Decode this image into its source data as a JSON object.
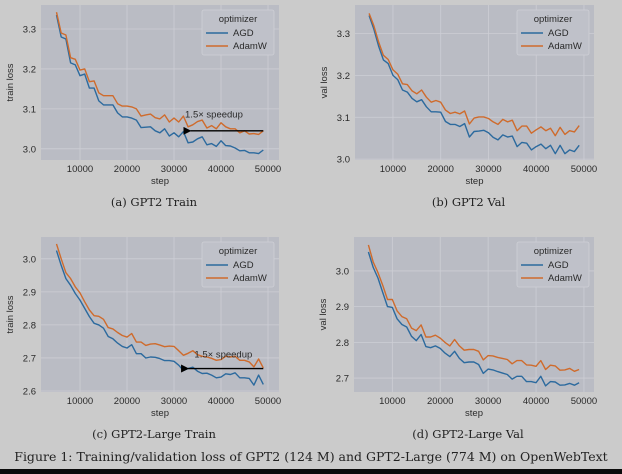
{
  "figure_caption": "Figure 1: Training/validation loss of GPT2 (124 M) and GPT2-Large (774 M) on OpenWebText",
  "colors": {
    "AGD": "#2c6a9e",
    "AdamW": "#cf6b2c",
    "plot_bg": "#babcc4",
    "grid": "#cdced5"
  },
  "chart_data": [
    {
      "type": "line",
      "caption": "(a) GPT2 Train",
      "xlabel": "step",
      "ylabel": "train loss",
      "xlim": [
        1700,
        52340
      ],
      "ylim": [
        2.972,
        3.36
      ],
      "xticks": [
        10000,
        20000,
        30000,
        40000,
        50000
      ],
      "xtick_labels": [
        "10000",
        "20000",
        "30000",
        "40000",
        "50000"
      ],
      "yticks": [
        3.0,
        3.1,
        3.2,
        3.3
      ],
      "ytick_labels": [
        "3.0",
        "3.1",
        "3.2",
        "3.3"
      ],
      "grid": true,
      "legend": {
        "title": "optimizer",
        "placement": "top-right",
        "entries": [
          "AGD",
          "AdamW"
        ]
      },
      "annotation": {
        "text": "1.5× speedup",
        "arrow_from": [
          49000,
          3.045
        ],
        "arrow_to": [
          32000,
          3.045
        ],
        "text_at": [
          38500,
          3.078
        ]
      },
      "series": [
        {
          "name": "AGD",
          "values": [
            3.335,
            3.28,
            3.275,
            3.215,
            3.21,
            3.183,
            3.187,
            3.152,
            3.152,
            3.12,
            3.11,
            3.11,
            3.11,
            3.09,
            3.08,
            3.08,
            3.077,
            3.072,
            3.053,
            3.054,
            3.055,
            3.045,
            3.04,
            3.05,
            3.032,
            3.04,
            3.03,
            3.043,
            3.015,
            3.017,
            3.025,
            3.03,
            3.01,
            3.013,
            3.006,
            3.02,
            3.008,
            3.007,
            3.002,
            2.995,
            2.996,
            2.99,
            2.99,
            2.988,
            2.997
          ]
        },
        {
          "name": "AdamW",
          "values": [
            3.342,
            3.29,
            3.285,
            3.228,
            3.224,
            3.197,
            3.2,
            3.168,
            3.17,
            3.14,
            3.133,
            3.133,
            3.133,
            3.113,
            3.107,
            3.107,
            3.105,
            3.1,
            3.082,
            3.085,
            3.087,
            3.078,
            3.075,
            3.085,
            3.067,
            3.077,
            3.067,
            3.082,
            3.055,
            3.06,
            3.068,
            3.072,
            3.052,
            3.058,
            3.05,
            3.065,
            3.055,
            3.05,
            3.05,
            3.04,
            3.045,
            3.037,
            3.038,
            3.036,
            3.045
          ]
        }
      ]
    },
    {
      "type": "line",
      "caption": "(b) GPT2 Val",
      "xlabel": "step",
      "ylabel": "val loss",
      "xlim": [
        2050,
        52100
      ],
      "ylim": [
        2.998,
        3.368
      ],
      "xticks": [
        10000,
        20000,
        30000,
        40000,
        50000
      ],
      "xtick_labels": [
        "10000",
        "20000",
        "30000",
        "40000",
        "50000"
      ],
      "yticks": [
        3.0,
        3.1,
        3.2,
        3.3
      ],
      "ytick_labels": [
        "3.0",
        "3.1",
        "3.2",
        "3.3"
      ],
      "grid": true,
      "legend": {
        "title": "optimizer",
        "placement": "top-right",
        "entries": [
          "AGD",
          "AdamW"
        ]
      },
      "series": [
        {
          "name": "AGD",
          "values": [
            3.343,
            3.31,
            3.27,
            3.237,
            3.228,
            3.2,
            3.19,
            3.165,
            3.16,
            3.145,
            3.137,
            3.142,
            3.125,
            3.113,
            3.113,
            3.112,
            3.09,
            3.083,
            3.083,
            3.078,
            3.085,
            3.053,
            3.066,
            3.067,
            3.069,
            3.063,
            3.052,
            3.046,
            3.058,
            3.053,
            3.055,
            3.03,
            3.04,
            3.038,
            3.022,
            3.03,
            3.036,
            3.025,
            3.033,
            3.013,
            3.033,
            3.013,
            3.022,
            3.018,
            3.033
          ]
        },
        {
          "name": "AdamW",
          "values": [
            3.348,
            3.318,
            3.28,
            3.248,
            3.238,
            3.213,
            3.203,
            3.18,
            3.178,
            3.163,
            3.156,
            3.165,
            3.148,
            3.136,
            3.14,
            3.136,
            3.117,
            3.109,
            3.112,
            3.108,
            3.115,
            3.084,
            3.098,
            3.101,
            3.101,
            3.097,
            3.089,
            3.083,
            3.095,
            3.089,
            3.093,
            3.068,
            3.079,
            3.079,
            3.062,
            3.07,
            3.077,
            3.068,
            3.074,
            3.056,
            3.076,
            3.059,
            3.068,
            3.065,
            3.08
          ]
        }
      ]
    },
    {
      "type": "line",
      "caption": "(c) GPT2-Large Train",
      "xlabel": "step",
      "ylabel": "train loss",
      "xlim": [
        1700,
        52340
      ],
      "ylim": [
        2.597,
        3.066
      ],
      "xticks": [
        10000,
        20000,
        30000,
        40000,
        50000
      ],
      "xtick_labels": [
        "10000",
        "20000",
        "30000",
        "40000",
        "50000"
      ],
      "yticks": [
        2.6,
        2.7,
        2.8,
        2.9,
        3.0
      ],
      "ytick_labels": [
        "2.6",
        "2.7",
        "2.8",
        "2.9",
        "3.0"
      ],
      "grid": true,
      "legend": {
        "title": "optimizer",
        "placement": "top-right",
        "entries": [
          "AGD",
          "AdamW"
        ]
      },
      "annotation": {
        "text": "1.5× speedup",
        "arrow_from": [
          49000,
          2.668
        ],
        "arrow_to": [
          31500,
          2.668
        ],
        "text_at": [
          40500,
          2.701
        ]
      },
      "series": [
        {
          "name": "AGD",
          "values": [
            3.025,
            2.98,
            2.94,
            2.92,
            2.895,
            2.875,
            2.85,
            2.825,
            2.805,
            2.8,
            2.79,
            2.765,
            2.758,
            2.745,
            2.735,
            2.73,
            2.74,
            2.713,
            2.713,
            2.7,
            2.703,
            2.702,
            2.698,
            2.692,
            2.692,
            2.69,
            2.678,
            2.662,
            2.668,
            2.672,
            2.66,
            2.653,
            2.654,
            2.648,
            2.64,
            2.642,
            2.652,
            2.65,
            2.655,
            2.64,
            2.64,
            2.638,
            2.618,
            2.648,
            2.62
          ]
        },
        {
          "name": "AdamW",
          "values": [
            3.045,
            3.0,
            2.958,
            2.94,
            2.915,
            2.897,
            2.87,
            2.845,
            2.828,
            2.826,
            2.817,
            2.792,
            2.788,
            2.777,
            2.768,
            2.763,
            2.774,
            2.748,
            2.748,
            2.738,
            2.742,
            2.743,
            2.739,
            2.734,
            2.736,
            2.735,
            2.722,
            2.708,
            2.714,
            2.722,
            2.71,
            2.705,
            2.703,
            2.699,
            2.693,
            2.695,
            2.705,
            2.703,
            2.705,
            2.693,
            2.693,
            2.688,
            2.673,
            2.697,
            2.67
          ]
        }
      ]
    },
    {
      "type": "line",
      "caption": "(d) GPT2-Large Val",
      "xlabel": "step",
      "ylabel": "val loss",
      "xlim": [
        2000,
        52100
      ],
      "ylim": [
        2.661,
        3.095
      ],
      "xticks": [
        10000,
        20000,
        30000,
        40000,
        50000
      ],
      "xtick_labels": [
        "10000",
        "20000",
        "30000",
        "40000",
        "50000"
      ],
      "yticks": [
        2.7,
        2.8,
        2.9,
        3.0
      ],
      "ytick_labels": [
        "2.7",
        "2.8",
        "2.9",
        "3.0"
      ],
      "grid": true,
      "legend": {
        "title": "optimizer",
        "placement": "top-right",
        "entries": [
          "AGD",
          "AdamW"
        ]
      },
      "series": [
        {
          "name": "AGD",
          "values": [
            3.053,
            3.01,
            2.98,
            2.94,
            2.9,
            2.898,
            2.866,
            2.85,
            2.843,
            2.817,
            2.805,
            2.822,
            2.788,
            2.785,
            2.79,
            2.783,
            2.77,
            2.76,
            2.775,
            2.755,
            2.743,
            2.745,
            2.745,
            2.738,
            2.713,
            2.725,
            2.723,
            2.718,
            2.714,
            2.71,
            2.697,
            2.705,
            2.705,
            2.69,
            2.69,
            2.687,
            2.705,
            2.678,
            2.69,
            2.689,
            2.68,
            2.681,
            2.685,
            2.68,
            2.687
          ]
        },
        {
          "name": "AdamW",
          "values": [
            3.073,
            3.025,
            2.995,
            2.96,
            2.92,
            2.92,
            2.888,
            2.872,
            2.866,
            2.84,
            2.833,
            2.849,
            2.815,
            2.815,
            2.82,
            2.812,
            2.8,
            2.79,
            2.808,
            2.79,
            2.778,
            2.78,
            2.78,
            2.775,
            2.751,
            2.763,
            2.762,
            2.758,
            2.755,
            2.752,
            2.74,
            2.749,
            2.749,
            2.737,
            2.736,
            2.733,
            2.749,
            2.724,
            2.736,
            2.734,
            2.722,
            2.723,
            2.727,
            2.719,
            2.724
          ]
        }
      ]
    }
  ],
  "steps": [
    5000,
    6000,
    7000,
    8000,
    9000,
    10000,
    11000,
    12000,
    13000,
    14000,
    15000,
    16000,
    17000,
    18000,
    19000,
    20000,
    21000,
    22000,
    23000,
    24000,
    25000,
    26000,
    27000,
    28000,
    29000,
    30000,
    31000,
    32000,
    33000,
    34000,
    35000,
    36000,
    37000,
    38000,
    39000,
    40000,
    41000,
    42000,
    43000,
    44000,
    45000,
    46000,
    47000,
    48000,
    49000
  ]
}
